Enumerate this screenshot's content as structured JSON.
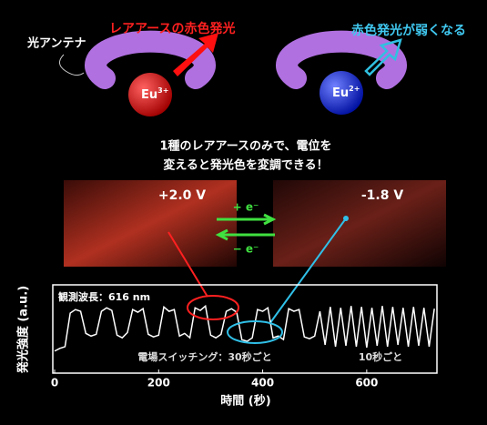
{
  "chart_data": {
    "type": "line",
    "x_label": "時間 (秒)",
    "y_label": "発光強度 (a.u.)",
    "annotations": [
      "観測波長：616 nm",
      "電場スイッチング：30秒ごと",
      "10秒ごと"
    ],
    "color": "#ffffff",
    "x": [
      0,
      10,
      20,
      30,
      40,
      50,
      60,
      70,
      80,
      90,
      100,
      110,
      120,
      130,
      140,
      150,
      160,
      170,
      180,
      190,
      200,
      210,
      220,
      230,
      240,
      250,
      260,
      270,
      280,
      290,
      300,
      310,
      320,
      330,
      340,
      350,
      360,
      370,
      380,
      390,
      400,
      410,
      420,
      430,
      440,
      450,
      460,
      470,
      480,
      490,
      500,
      510,
      520,
      530,
      540,
      550,
      560,
      570,
      580,
      590,
      600,
      610,
      620,
      630,
      640,
      650,
      660,
      670,
      680,
      690,
      700,
      710,
      720,
      730
    ],
    "values": [
      0.25,
      0.28,
      0.3,
      0.68,
      0.72,
      0.7,
      0.45,
      0.42,
      0.44,
      0.7,
      0.74,
      0.71,
      0.43,
      0.4,
      0.46,
      0.72,
      0.69,
      0.73,
      0.44,
      0.41,
      0.43,
      0.75,
      0.7,
      0.72,
      0.42,
      0.45,
      0.4,
      0.74,
      0.71,
      0.76,
      0.43,
      0.4,
      0.44,
      0.7,
      0.73,
      0.69,
      0.38,
      0.36,
      0.4,
      0.72,
      0.7,
      0.74,
      0.4,
      0.42,
      0.38,
      0.73,
      0.7,
      0.72,
      0.41,
      0.39,
      0.42,
      0.7,
      0.32,
      0.75,
      0.3,
      0.74,
      0.31,
      0.76,
      0.3,
      0.75,
      0.29,
      0.74,
      0.31,
      0.76,
      0.3,
      0.75,
      0.32,
      0.74,
      0.3,
      0.75,
      0.31,
      0.74,
      0.3,
      0.73
    ],
    "xlim": [
      0,
      735
    ],
    "ylim": [
      0,
      1
    ],
    "xticks": [
      0,
      200,
      400,
      600
    ]
  },
  "diagram": {
    "antenna": "光アンテナ",
    "left_caption": "レアアースの赤色発光",
    "right_caption": "赤色発光が弱くなる",
    "left_ion": {
      "symbol": "Eu",
      "charge": "3+"
    },
    "right_ion": {
      "symbol": "Eu",
      "charge": "2+"
    },
    "message": [
      "1種のレアアースのみで、電位を",
      "変えると発光色を変調できる！"
    ],
    "left_voltage": "+2.0 V",
    "right_voltage": "-1.8 V",
    "forward": "+ e⁻",
    "backward": "− e⁻"
  }
}
